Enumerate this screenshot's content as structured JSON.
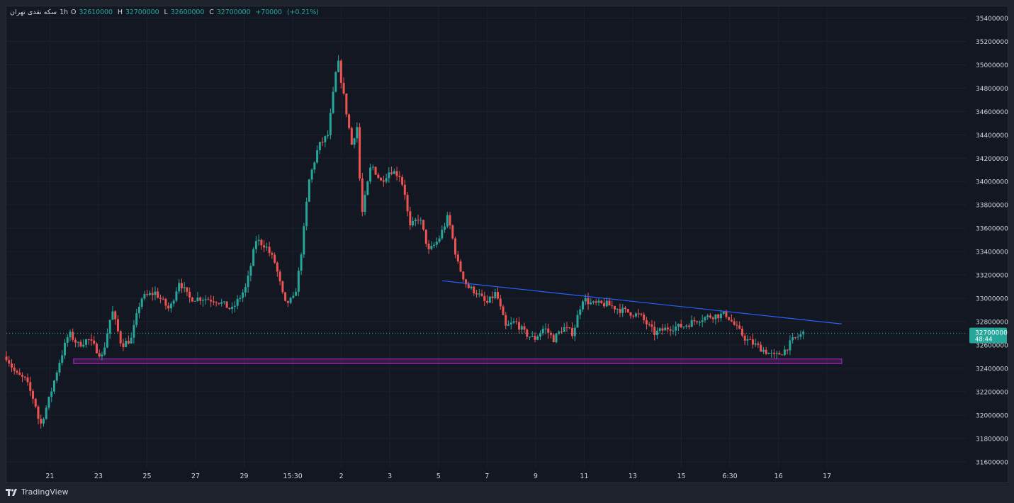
{
  "legend": {
    "symbol": "سکه نقدی تهران",
    "interval": "1h",
    "open_label": "O",
    "open": "32610000",
    "high_label": "H",
    "high": "32700000",
    "low_label": "L",
    "low": "32600000",
    "close_label": "C",
    "close": "32700000",
    "change": "+70000",
    "change_pct": "(+0.21%)"
  },
  "price_tag": {
    "price": "32700000",
    "countdown": "48:44"
  },
  "brand": "TradingView",
  "colors": {
    "up": "#26a69a",
    "down": "#ef5350",
    "trendline": "#2962ff",
    "support_zone": "#9c27b0",
    "background": "#131722",
    "grid": "#1c2030"
  },
  "chart_data": {
    "type": "candlestick",
    "ylim": [
      31550000,
      35500000
    ],
    "y_ticks": [
      31600000,
      31800000,
      32000000,
      32200000,
      32400000,
      32600000,
      32800000,
      33000000,
      33200000,
      33400000,
      33600000,
      33800000,
      34000000,
      34200000,
      34400000,
      34600000,
      34800000,
      35000000,
      35200000,
      35400000
    ],
    "x_ticks": [
      "21",
      "23",
      "25",
      "27",
      "29",
      "15:30",
      "2",
      "3",
      "5",
      "7",
      "9",
      "11",
      "13",
      "15",
      "6:30",
      "16",
      "17"
    ],
    "last_price": 32700000,
    "trendline": {
      "from": [
        0.454,
        33150000
      ],
      "to": [
        0.87,
        32780000
      ]
    },
    "support_zone": {
      "from": 0.07,
      "to": 0.87,
      "low": 32440000,
      "high": 32480000
    },
    "series": [
      {
        "name": "",
        "anchors": [
          [
            0.0,
            32500000
          ],
          [
            0.01,
            32350000
          ],
          [
            0.02,
            32300000
          ],
          [
            0.03,
            32100000
          ],
          [
            0.035,
            31900000
          ],
          [
            0.045,
            32150000
          ],
          [
            0.055,
            32450000
          ],
          [
            0.065,
            32700000
          ],
          [
            0.075,
            32600000
          ],
          [
            0.085,
            32650000
          ],
          [
            0.1,
            32500000
          ],
          [
            0.11,
            32900000
          ],
          [
            0.12,
            32600000
          ],
          [
            0.13,
            32650000
          ],
          [
            0.14,
            33000000
          ],
          [
            0.155,
            33050000
          ],
          [
            0.17,
            32900000
          ],
          [
            0.18,
            33150000
          ],
          [
            0.19,
            33000000
          ],
          [
            0.205,
            33000000
          ],
          [
            0.22,
            32980000
          ],
          [
            0.235,
            32900000
          ],
          [
            0.25,
            33100000
          ],
          [
            0.26,
            33500000
          ],
          [
            0.27,
            33450000
          ],
          [
            0.28,
            33300000
          ],
          [
            0.29,
            32950000
          ],
          [
            0.3,
            33000000
          ],
          [
            0.305,
            33250000
          ],
          [
            0.31,
            33600000
          ],
          [
            0.315,
            34000000
          ],
          [
            0.325,
            34300000
          ],
          [
            0.335,
            34400000
          ],
          [
            0.345,
            35050000
          ],
          [
            0.35,
            34800000
          ],
          [
            0.36,
            34300000
          ],
          [
            0.365,
            34500000
          ],
          [
            0.37,
            33700000
          ],
          [
            0.38,
            34150000
          ],
          [
            0.39,
            34000000
          ],
          [
            0.4,
            34100000
          ],
          [
            0.41,
            34050000
          ],
          [
            0.415,
            33900000
          ],
          [
            0.42,
            33600000
          ],
          [
            0.43,
            33700000
          ],
          [
            0.44,
            33400000
          ],
          [
            0.45,
            33500000
          ],
          [
            0.46,
            33700000
          ],
          [
            0.47,
            33300000
          ],
          [
            0.48,
            33100000
          ],
          [
            0.49,
            33050000
          ],
          [
            0.5,
            32950000
          ],
          [
            0.51,
            33050000
          ],
          [
            0.52,
            32750000
          ],
          [
            0.53,
            32800000
          ],
          [
            0.54,
            32700000
          ],
          [
            0.55,
            32650000
          ],
          [
            0.56,
            32750000
          ],
          [
            0.57,
            32650000
          ],
          [
            0.58,
            32750000
          ],
          [
            0.59,
            32700000
          ],
          [
            0.6,
            33000000
          ],
          [
            0.61,
            32950000
          ],
          [
            0.625,
            32950000
          ],
          [
            0.64,
            32900000
          ],
          [
            0.66,
            32850000
          ],
          [
            0.675,
            32700000
          ],
          [
            0.69,
            32750000
          ],
          [
            0.705,
            32760000
          ],
          [
            0.72,
            32820000
          ],
          [
            0.735,
            32850000
          ],
          [
            0.75,
            32860000
          ],
          [
            0.76,
            32750000
          ],
          [
            0.77,
            32650000
          ],
          [
            0.78,
            32600000
          ],
          [
            0.79,
            32550000
          ],
          [
            0.8,
            32500000
          ],
          [
            0.81,
            32550000
          ],
          [
            0.82,
            32650000
          ],
          [
            0.83,
            32700000
          ]
        ]
      }
    ]
  }
}
